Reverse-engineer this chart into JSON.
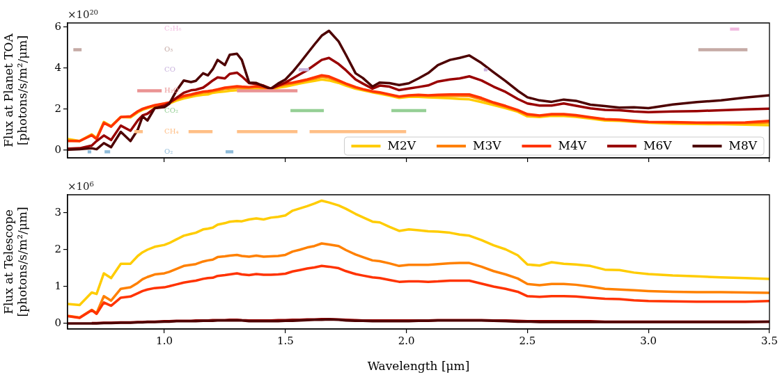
{
  "chart_data": [
    {
      "type": "line",
      "ylabel": "Flux at Planet TOA\n[photons/s/m²/μm]",
      "annotations": [
        "×10²⁰"
      ],
      "legend": "bottom right",
      "tick_labels": "y",
      "xlim": [
        0.6,
        3.5
      ],
      "ylim": [
        -0.37,
        6.2
      ],
      "xticks": [
        1,
        1.5,
        2,
        2.5,
        3,
        3.5
      ],
      "yticks": [
        0,
        2,
        4,
        6
      ],
      "x": [
        0.6,
        0.65,
        0.7,
        0.72,
        0.75,
        0.78,
        0.82,
        0.86,
        0.89,
        0.91,
        0.93,
        0.96,
        1.0,
        1.02,
        1.05,
        1.08,
        1.11,
        1.13,
        1.16,
        1.18,
        1.2,
        1.22,
        1.25,
        1.27,
        1.3,
        1.32,
        1.35,
        1.38,
        1.41,
        1.44,
        1.47,
        1.5,
        1.53,
        1.56,
        1.59,
        1.62,
        1.65,
        1.68,
        1.72,
        1.75,
        1.79,
        1.82,
        1.86,
        1.89,
        1.93,
        1.97,
        2.01,
        2.05,
        2.09,
        2.13,
        2.18,
        2.22,
        2.26,
        2.31,
        2.36,
        2.41,
        2.46,
        2.5,
        2.55,
        2.6,
        2.65,
        2.7,
        2.76,
        2.82,
        2.88,
        2.94,
        3.0,
        3.1,
        3.2,
        3.3,
        3.4,
        3.5
      ],
      "series": [
        {
          "name": "M2V",
          "color": "#ffcc00",
          "values": [
            0.55,
            0.45,
            0.78,
            0.6,
            1.38,
            1.18,
            1.62,
            1.6,
            1.85,
            1.97,
            2.05,
            2.15,
            2.22,
            2.28,
            2.42,
            2.52,
            2.6,
            2.65,
            2.7,
            2.72,
            2.8,
            2.83,
            2.86,
            2.9,
            2.92,
            2.95,
            2.98,
            3.0,
            2.98,
            2.95,
            3.05,
            3.1,
            3.18,
            3.25,
            3.32,
            3.38,
            3.45,
            3.4,
            3.28,
            3.15,
            3.0,
            2.92,
            2.82,
            2.75,
            2.66,
            2.55,
            2.6,
            2.6,
            2.58,
            2.56,
            2.53,
            2.5,
            2.48,
            2.35,
            2.2,
            2.05,
            1.88,
            1.65,
            1.62,
            1.68,
            1.67,
            1.63,
            1.54,
            1.45,
            1.43,
            1.38,
            1.34,
            1.3,
            1.28,
            1.27,
            1.25,
            1.22
          ]
        },
        {
          "name": "M3V",
          "color": "#ff8000",
          "values": [
            0.48,
            0.45,
            0.75,
            0.57,
            1.35,
            1.16,
            1.62,
            1.63,
            1.88,
            2.0,
            2.08,
            2.18,
            2.26,
            2.31,
            2.49,
            2.61,
            2.68,
            2.74,
            2.81,
            2.83,
            2.88,
            2.92,
            2.99,
            3.02,
            3.05,
            3.05,
            3.05,
            3.08,
            3.05,
            2.98,
            3.12,
            3.2,
            3.26,
            3.33,
            3.41,
            3.49,
            3.58,
            3.53,
            3.36,
            3.22,
            3.05,
            2.96,
            2.85,
            2.8,
            2.7,
            2.6,
            2.65,
            2.67,
            2.65,
            2.65,
            2.66,
            2.65,
            2.64,
            2.48,
            2.29,
            2.12,
            1.93,
            1.72,
            1.67,
            1.73,
            1.73,
            1.68,
            1.59,
            1.5,
            1.47,
            1.41,
            1.37,
            1.35,
            1.33,
            1.32,
            1.32,
            1.36
          ]
        },
        {
          "name": "M4V",
          "color": "#ff3300",
          "values": [
            0.45,
            0.45,
            0.73,
            0.55,
            1.33,
            1.15,
            1.62,
            1.65,
            1.9,
            2.02,
            2.1,
            2.2,
            2.28,
            2.33,
            2.53,
            2.65,
            2.72,
            2.78,
            2.86,
            2.88,
            2.92,
            2.97,
            3.05,
            3.08,
            3.12,
            3.1,
            3.08,
            3.12,
            3.08,
            3.0,
            3.15,
            3.25,
            3.3,
            3.37,
            3.45,
            3.55,
            3.65,
            3.6,
            3.4,
            3.25,
            3.08,
            2.98,
            2.87,
            2.82,
            2.72,
            2.62,
            2.68,
            2.7,
            2.68,
            2.7,
            2.72,
            2.72,
            2.72,
            2.55,
            2.33,
            2.16,
            1.96,
            1.76,
            1.7,
            1.76,
            1.76,
            1.71,
            1.61,
            1.52,
            1.49,
            1.43,
            1.38,
            1.37,
            1.35,
            1.35,
            1.36,
            1.43
          ]
        },
        {
          "name": "M6V",
          "color": "#990000",
          "values": [
            0.08,
            0.1,
            0.23,
            0.45,
            0.72,
            0.5,
            1.2,
            0.95,
            1.45,
            1.7,
            1.78,
            2.05,
            2.18,
            2.3,
            2.55,
            2.8,
            2.92,
            2.95,
            3.05,
            3.22,
            3.4,
            3.55,
            3.5,
            3.72,
            3.78,
            3.6,
            3.27,
            3.23,
            3.15,
            3.0,
            3.15,
            3.3,
            3.5,
            3.7,
            3.9,
            4.15,
            4.4,
            4.5,
            4.2,
            3.9,
            3.45,
            3.25,
            3.0,
            3.15,
            3.1,
            2.93,
            3.01,
            3.08,
            3.16,
            3.35,
            3.45,
            3.5,
            3.6,
            3.4,
            3.1,
            2.84,
            2.5,
            2.28,
            2.18,
            2.18,
            2.28,
            2.17,
            2.04,
            1.97,
            1.95,
            1.89,
            1.86,
            1.89,
            1.91,
            1.95,
            1.99,
            2.03
          ]
        },
        {
          "name": "M8V",
          "color": "#4d0000",
          "values": [
            0.03,
            0.05,
            0.1,
            0.05,
            0.35,
            0.15,
            0.9,
            0.45,
            1.0,
            1.65,
            1.45,
            2.05,
            2.1,
            2.26,
            2.9,
            3.4,
            3.32,
            3.38,
            3.75,
            3.65,
            3.95,
            4.4,
            4.15,
            4.65,
            4.7,
            4.4,
            3.3,
            3.28,
            3.12,
            3.0,
            3.25,
            3.45,
            3.82,
            4.25,
            4.7,
            5.15,
            5.58,
            5.82,
            5.3,
            4.65,
            3.75,
            3.52,
            3.1,
            3.3,
            3.27,
            3.18,
            3.26,
            3.5,
            3.76,
            4.15,
            4.4,
            4.5,
            4.62,
            4.25,
            3.8,
            3.37,
            2.9,
            2.58,
            2.43,
            2.36,
            2.47,
            2.41,
            2.22,
            2.15,
            2.08,
            2.09,
            2.05,
            2.23,
            2.35,
            2.43,
            2.57,
            2.68
          ]
        },
        {
          "name": "C₂H₆",
          "color": "#f1bbe0",
          "x": [
            3.337,
            3.375
          ],
          "values": [
            5.9,
            5.9
          ]
        },
        {
          "name": "O₃",
          "color": "#c5aaa5",
          "x": [
            0.624,
            0.658,
            1.9,
            3.206,
            3.409
          ],
          "values": [
            4.9,
            4.9,
            null,
            4.9,
            4.9
          ]
        },
        {
          "name": "CO",
          "color": "#c9b3de",
          "x": [
            1.555,
            1.598,
            2.0,
            2.32,
            2.335
          ],
          "values": [
            3.92,
            3.92,
            null,
            3.92,
            3.92
          ]
        },
        {
          "name": "H₂O",
          "color": "#ea9393",
          "x": [
            0.888,
            0.989,
            1.1,
            1.3,
            1.55
          ],
          "values": [
            2.9,
            2.9,
            null,
            2.9,
            2.9
          ]
        },
        {
          "name": "CO₂",
          "color": "#95cf95",
          "x": [
            1.521,
            1.659,
            1.8,
            1.938,
            2.082
          ],
          "values": [
            1.93,
            1.93,
            null,
            1.93,
            1.93
          ]
        },
        {
          "name": "CH₄",
          "color": "#ffbf86",
          "x": [
            0.876,
            0.911,
            1.0,
            1.1,
            1.199,
            1.25,
            1.3,
            1.55,
            1.58,
            1.6,
            1.999
          ],
          "values": [
            0.91,
            0.91,
            null,
            0.91,
            0.91,
            null,
            0.91,
            0.91,
            null,
            0.91,
            0.91
          ]
        },
        {
          "name": "O₂",
          "color": "#8fbbd9",
          "x": [
            0.683,
            0.698,
            0.72,
            0.753,
            0.776,
            1.0,
            1.253,
            1.285
          ],
          "values": [
            -0.07,
            -0.07,
            null,
            -0.07,
            -0.07,
            null,
            -0.07,
            -0.07
          ]
        }
      ]
    },
    {
      "type": "line",
      "xlabel": "Wavelength [μm]",
      "ylabel": "Flux at Telescope\n[photons/s/m²/μm]",
      "annotations": [
        "×10⁶"
      ],
      "xlim": [
        0.6,
        3.5
      ],
      "ylim": [
        -0.15,
        3.49
      ],
      "xticks": [
        {
          "value": 1,
          "label": "1.0"
        },
        {
          "value": 1.5,
          "label": "1.5"
        },
        {
          "value": 2,
          "label": "2.0"
        },
        {
          "value": 2.5,
          "label": "2.5"
        },
        {
          "value": 3,
          "label": "3.0"
        },
        {
          "value": 3.5,
          "label": "3.5"
        }
      ],
      "yticks": [
        0,
        1,
        2,
        3
      ],
      "x": [
        0.6,
        0.65,
        0.7,
        0.72,
        0.75,
        0.78,
        0.82,
        0.86,
        0.89,
        0.91,
        0.93,
        0.96,
        1.0,
        1.02,
        1.05,
        1.08,
        1.11,
        1.13,
        1.16,
        1.18,
        1.2,
        1.22,
        1.25,
        1.27,
        1.3,
        1.32,
        1.35,
        1.38,
        1.41,
        1.44,
        1.47,
        1.5,
        1.53,
        1.56,
        1.59,
        1.62,
        1.65,
        1.68,
        1.72,
        1.75,
        1.79,
        1.82,
        1.86,
        1.89,
        1.93,
        1.97,
        2.01,
        2.05,
        2.09,
        2.13,
        2.18,
        2.22,
        2.26,
        2.31,
        2.36,
        2.41,
        2.46,
        2.5,
        2.55,
        2.6,
        2.65,
        2.7,
        2.76,
        2.82,
        2.88,
        2.94,
        3.0,
        3.1,
        3.2,
        3.3,
        3.4,
        3.5
      ],
      "series": [
        {
          "color": "#ffcc00",
          "values": [
            0.53,
            0.5,
            0.84,
            0.8,
            1.36,
            1.23,
            1.62,
            1.62,
            1.83,
            1.93,
            2.0,
            2.08,
            2.13,
            2.18,
            2.28,
            2.38,
            2.43,
            2.46,
            2.55,
            2.57,
            2.6,
            2.68,
            2.72,
            2.76,
            2.78,
            2.77,
            2.82,
            2.85,
            2.82,
            2.87,
            2.89,
            2.93,
            3.06,
            3.12,
            3.18,
            3.25,
            3.33,
            3.28,
            3.2,
            3.11,
            2.97,
            2.88,
            2.76,
            2.74,
            2.62,
            2.51,
            2.55,
            2.53,
            2.5,
            2.49,
            2.46,
            2.41,
            2.38,
            2.26,
            2.12,
            2.01,
            1.85,
            1.6,
            1.57,
            1.66,
            1.62,
            1.6,
            1.56,
            1.46,
            1.45,
            1.38,
            1.34,
            1.3,
            1.28,
            1.25,
            1.23,
            1.21
          ]
        },
        {
          "color": "#ff8000",
          "values": [
            0.21,
            0.16,
            0.37,
            0.28,
            0.74,
            0.62,
            0.94,
            0.98,
            1.1,
            1.2,
            1.26,
            1.33,
            1.36,
            1.4,
            1.48,
            1.56,
            1.59,
            1.61,
            1.68,
            1.71,
            1.73,
            1.8,
            1.82,
            1.84,
            1.86,
            1.83,
            1.81,
            1.84,
            1.81,
            1.82,
            1.83,
            1.86,
            1.95,
            2.0,
            2.06,
            2.1,
            2.17,
            2.14,
            2.1,
            1.99,
            1.87,
            1.8,
            1.71,
            1.69,
            1.63,
            1.56,
            1.59,
            1.59,
            1.59,
            1.61,
            1.63,
            1.64,
            1.64,
            1.54,
            1.42,
            1.33,
            1.22,
            1.07,
            1.04,
            1.07,
            1.07,
            1.05,
            1.0,
            0.94,
            0.92,
            0.9,
            0.88,
            0.86,
            0.85,
            0.85,
            0.84,
            0.83
          ]
        },
        {
          "color": "#ff3300",
          "values": [
            0.2,
            0.15,
            0.36,
            0.26,
            0.57,
            0.48,
            0.7,
            0.73,
            0.82,
            0.88,
            0.92,
            0.96,
            0.98,
            1.01,
            1.06,
            1.11,
            1.14,
            1.16,
            1.21,
            1.23,
            1.24,
            1.29,
            1.31,
            1.33,
            1.36,
            1.33,
            1.31,
            1.34,
            1.32,
            1.32,
            1.33,
            1.35,
            1.41,
            1.45,
            1.49,
            1.52,
            1.56,
            1.54,
            1.5,
            1.42,
            1.34,
            1.3,
            1.25,
            1.23,
            1.18,
            1.13,
            1.14,
            1.14,
            1.13,
            1.14,
            1.16,
            1.16,
            1.16,
            1.08,
            1.0,
            0.94,
            0.86,
            0.74,
            0.72,
            0.74,
            0.74,
            0.73,
            0.7,
            0.67,
            0.66,
            0.63,
            0.61,
            0.6,
            0.59,
            0.59,
            0.59,
            0.61
          ]
        },
        {
          "color": "#990000",
          "values": [
            null,
            null,
            0.01,
            0.01,
            0.02,
            0.02,
            0.03,
            0.03,
            0.04,
            0.04,
            0.05,
            0.05,
            0.06,
            0.06,
            0.07,
            0.07,
            0.07,
            0.08,
            0.08,
            0.08,
            0.09,
            0.09,
            0.09,
            0.1,
            0.1,
            0.09,
            0.08,
            0.08,
            0.08,
            0.08,
            0.09,
            0.09,
            0.1,
            0.1,
            0.11,
            0.11,
            0.12,
            0.12,
            0.11,
            0.1,
            0.09,
            0.08,
            0.08,
            0.08,
            0.08,
            0.08,
            0.08,
            0.08,
            0.08,
            0.09,
            0.09,
            0.09,
            0.09,
            0.09,
            0.08,
            0.08,
            0.07,
            0.06,
            0.06,
            0.06,
            0.06,
            0.06,
            0.06,
            0.05,
            0.05,
            0.05,
            0.05,
            0.05,
            0.05,
            0.05,
            0.05,
            0.05
          ]
        },
        {
          "color": "#4d0000",
          "values": [
            0.0,
            0.0,
            0.0,
            0.0,
            0.01,
            0.01,
            0.02,
            0.02,
            0.03,
            0.03,
            0.04,
            0.04,
            0.05,
            0.05,
            0.06,
            0.06,
            0.06,
            0.06,
            0.07,
            0.07,
            0.07,
            0.08,
            0.08,
            0.08,
            0.08,
            0.08,
            0.06,
            0.06,
            0.06,
            0.06,
            0.06,
            0.07,
            0.07,
            0.08,
            0.09,
            0.1,
            0.1,
            0.11,
            0.1,
            0.08,
            0.07,
            0.07,
            0.06,
            0.06,
            0.06,
            0.06,
            0.06,
            0.07,
            0.07,
            0.08,
            0.08,
            0.08,
            0.08,
            0.08,
            0.07,
            0.06,
            0.05,
            0.05,
            0.04,
            0.04,
            0.04,
            0.04,
            0.04,
            0.04,
            0.04,
            0.04,
            0.04,
            0.04,
            0.04,
            0.04,
            0.04,
            0.05
          ]
        }
      ]
    }
  ]
}
